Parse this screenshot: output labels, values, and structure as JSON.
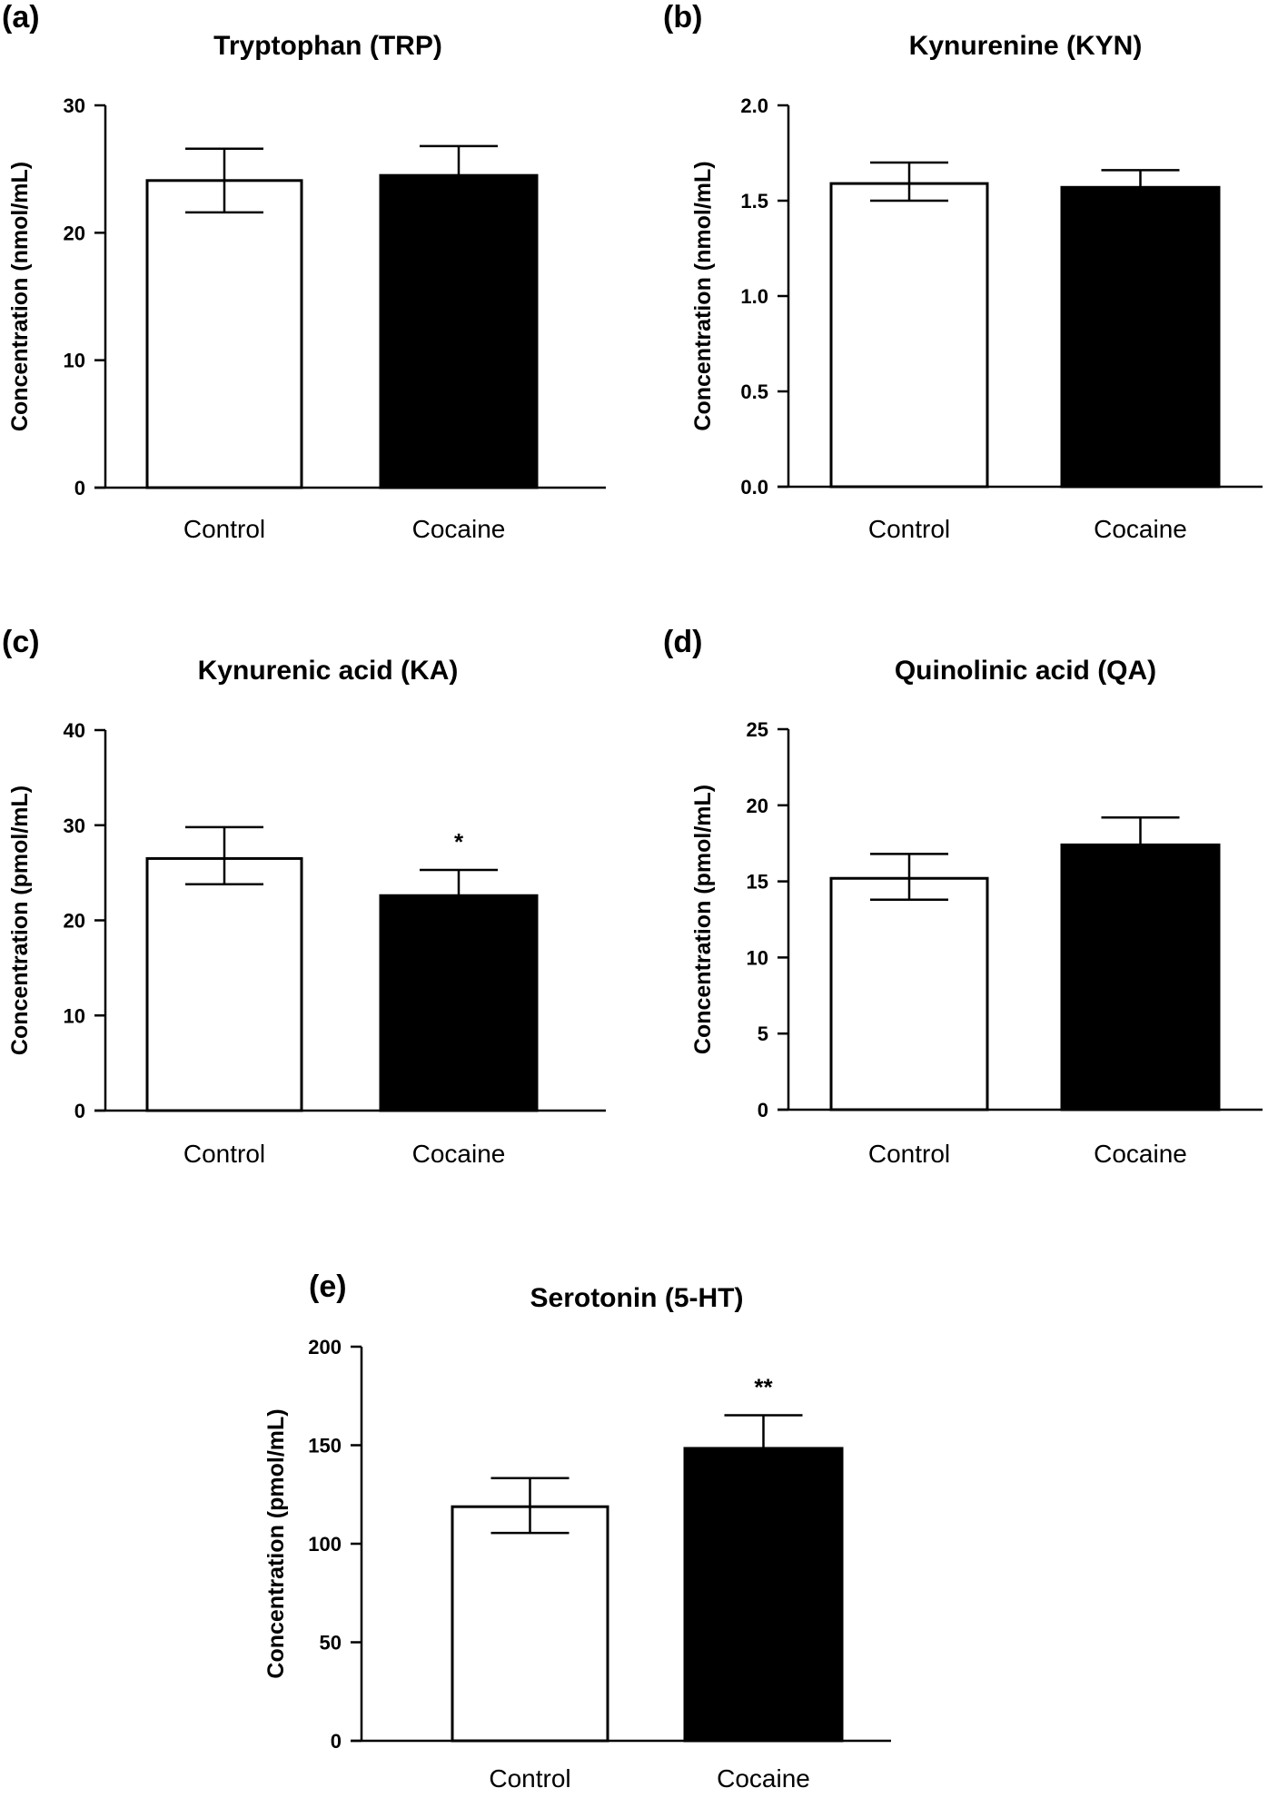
{
  "chart_data": [
    {
      "type": "bar",
      "panel": "(a)",
      "title": "Tryptophan (TRP)",
      "ylabel": "Concentration (nmol/mL)",
      "categories": [
        "Control",
        "Cocaine"
      ],
      "values": [
        24.1,
        24.5
      ],
      "error_upper": [
        26.6,
        26.8
      ],
      "error_lower": [
        21.6,
        null
      ],
      "annotations": [
        "",
        ""
      ],
      "ylim": [
        0,
        30
      ],
      "yticks": [
        "0",
        "10",
        "20",
        "30"
      ],
      "bar_colors": [
        "#ffffff",
        "#000000"
      ],
      "grid": false
    },
    {
      "type": "bar",
      "panel": "(b)",
      "title": "Kynurenine (KYN)",
      "ylabel": "Concentration (nmol/mL)",
      "categories": [
        "Control",
        "Cocaine"
      ],
      "values": [
        1.59,
        1.57
      ],
      "error_upper": [
        1.7,
        1.66
      ],
      "error_lower": [
        1.5,
        null
      ],
      "annotations": [
        "",
        ""
      ],
      "ylim": [
        0,
        2.0
      ],
      "yticks": [
        "0.0",
        "0.5",
        "1.0",
        "1.5",
        "2.0"
      ],
      "bar_colors": [
        "#ffffff",
        "#000000"
      ],
      "grid": false
    },
    {
      "type": "bar",
      "panel": "(c)",
      "title": "Kynurenic acid (KA)",
      "ylabel": "Concentration (pmol/mL)",
      "categories": [
        "Control",
        "Cocaine"
      ],
      "values": [
        26.5,
        22.6
      ],
      "error_upper": [
        29.8,
        25.3
      ],
      "error_lower": [
        23.8,
        null
      ],
      "annotations": [
        "",
        "*"
      ],
      "ylim": [
        0,
        40
      ],
      "yticks": [
        "0",
        "10",
        "20",
        "30",
        "40"
      ],
      "bar_colors": [
        "#ffffff",
        "#000000"
      ],
      "grid": false
    },
    {
      "type": "bar",
      "panel": "(d)",
      "title": "Quinolinic acid (QA)",
      "ylabel": "Concentration (pmol/mL)",
      "categories": [
        "Control",
        "Cocaine"
      ],
      "values": [
        15.2,
        17.4
      ],
      "error_upper": [
        16.8,
        19.2
      ],
      "error_lower": [
        13.8,
        null
      ],
      "annotations": [
        "",
        ""
      ],
      "ylim": [
        0,
        25
      ],
      "yticks": [
        "0",
        "5",
        "10",
        "15",
        "20",
        "25"
      ],
      "bar_colors": [
        "#ffffff",
        "#000000"
      ],
      "grid": false
    },
    {
      "type": "bar",
      "panel": "(e)",
      "title": "Serotonin (5-HT)",
      "ylabel": "Concentration (pmol/mL)",
      "categories": [
        "Control",
        "Cocaine"
      ],
      "values": [
        118.8,
        148.4
      ],
      "error_upper": [
        133.3,
        165.2
      ],
      "error_lower": [
        105.5,
        null
      ],
      "annotations": [
        "",
        "**"
      ],
      "ylim": [
        0,
        200
      ],
      "yticks": [
        "0",
        "50",
        "100",
        "150",
        "200"
      ],
      "bar_colors": [
        "#ffffff",
        "#000000"
      ],
      "grid": false
    }
  ]
}
